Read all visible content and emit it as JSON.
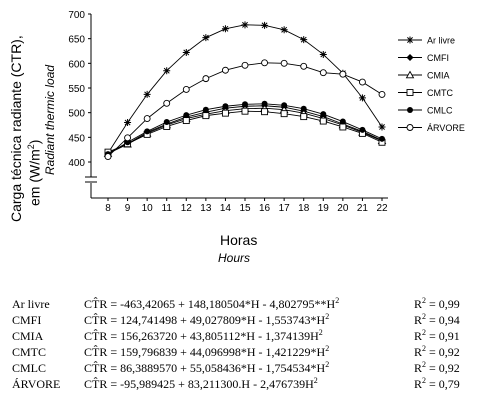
{
  "chart_data": {
    "type": "line",
    "x_ticks": [
      "8",
      "9",
      "10",
      "11",
      "12",
      "13",
      "14",
      "15",
      "16",
      "17",
      "18",
      "19",
      "20",
      "21",
      "22"
    ],
    "y_ticks": [
      "400",
      "450",
      "500",
      "550",
      "600",
      "650",
      "700"
    ],
    "ylim": [
      400,
      700
    ],
    "xlim": [
      8,
      22
    ],
    "y_axis_break": true,
    "ylabel": "Carga técnica radiante (CTR), em (W/m²)",
    "ylabel_en": "Radiant thermic load",
    "xlabel": "Horas",
    "xlabel_en": "Hours",
    "legend_position": "right",
    "x": [
      8,
      9,
      10,
      11,
      12,
      13,
      14,
      15,
      16,
      17,
      18,
      19,
      20,
      21,
      22
    ],
    "series": [
      {
        "name": "Ar livre",
        "marker": "asterisk",
        "values": [
          418,
          480,
          537,
          585,
          622,
          652,
          670,
          678,
          677,
          668,
          648,
          618,
          580,
          530,
          471
        ]
      },
      {
        "name": "CMFI",
        "marker": "diamond",
        "values": [
          418,
          437,
          460,
          477,
          491,
          501,
          509,
          513,
          514,
          511,
          503,
          492,
          477,
          462,
          444
        ]
      },
      {
        "name": "CMIA",
        "marker": "triangle",
        "values": [
          417,
          436,
          458,
          475,
          488,
          497,
          504,
          508,
          509,
          506,
          499,
          488,
          475,
          460,
          443
        ]
      },
      {
        "name": "CMTC",
        "marker": "square",
        "values": [
          420,
          437,
          456,
          472,
          484,
          494,
          499,
          503,
          502,
          498,
          492,
          483,
          471,
          458,
          440
        ]
      },
      {
        "name": "CMLC",
        "marker": "dot",
        "values": [
          416,
          440,
          462,
          481,
          495,
          506,
          513,
          517,
          518,
          515,
          508,
          497,
          482,
          465,
          447
        ]
      },
      {
        "name": "ÁRVORE",
        "marker": "circle",
        "values": [
          411,
          449,
          488,
          519,
          547,
          569,
          586,
          596,
          601,
          600,
          594,
          581,
          578,
          562,
          537
        ]
      }
    ]
  },
  "equations": [
    {
      "name": "Ar livre",
      "formula": "CT̂R = -463,42065 + 148,180504*H - 4,802795**H",
      "r2": "= 0,99"
    },
    {
      "name": "CMFI",
      "formula": "CT̂R = 124,741498 + 49,027809*H - 1,553743*H",
      "r2": "= 0,94"
    },
    {
      "name": "CMIA",
      "formula": "CT̂R = 156,263720 + 43,805112*H - 1,374139H",
      "r2": "= 0,91"
    },
    {
      "name": "CMTC",
      "formula": "CT̂R = 159,796839 + 44,096998*H - 1,421229*H",
      "r2": "= 0,92"
    },
    {
      "name": "CMLC",
      "formula": "CT̂R = 86,3889570 + 55,058436*H - 1,754534*H",
      "r2": "= 0,92"
    },
    {
      "name": "ÁRVORE",
      "formula": "CT̂R = -95,989425 + 83,211300.H - 2,476739H",
      "r2": "= 0,79"
    }
  ],
  "r2_label": "R",
  "sup2": "2"
}
